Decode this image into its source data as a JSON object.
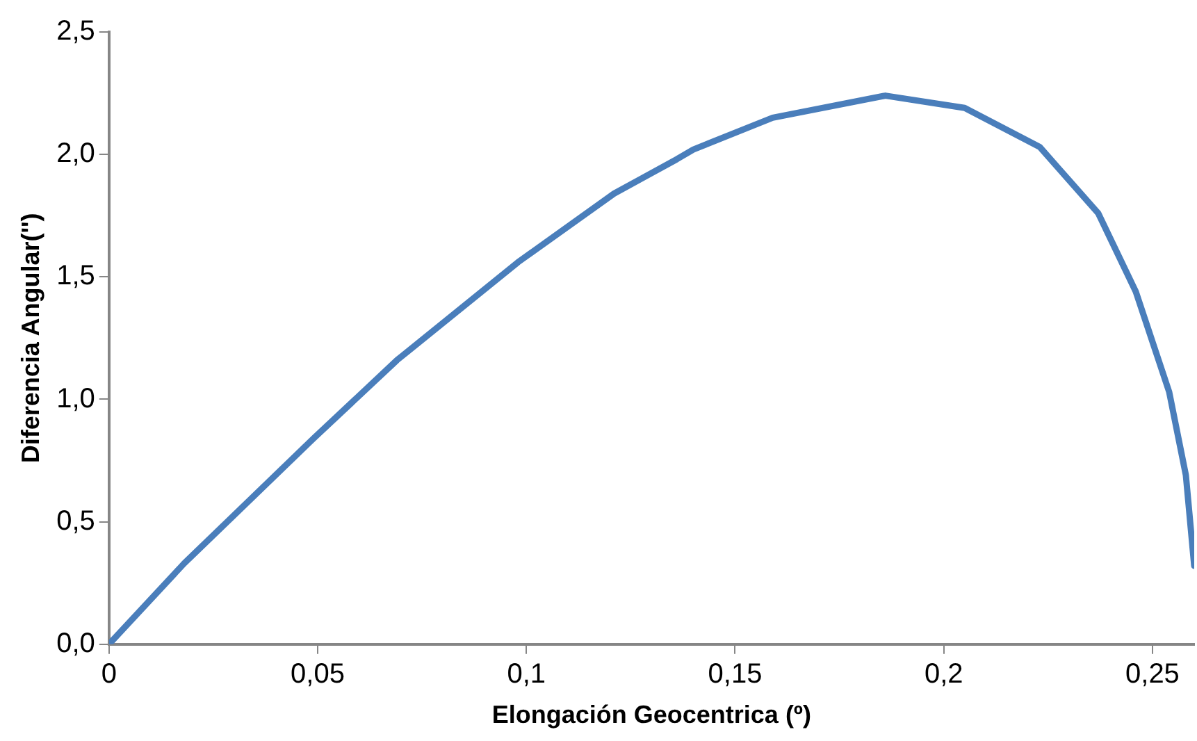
{
  "chart_data": {
    "type": "line",
    "xlabel": "Elongación Geocentrica (º)",
    "ylabel": "Diferencia Angular('')",
    "marker": "none",
    "line_style": "solid",
    "xlim": [
      0,
      0.26
    ],
    "ylim": [
      0,
      2.5
    ],
    "xticks": [
      0,
      {
        "value": 0.05,
        "label": "0,05"
      },
      {
        "value": 0.1,
        "label": "0,1"
      },
      {
        "value": 0.15,
        "label": "0,15"
      },
      {
        "value": 0.2,
        "label": "0,2"
      },
      {
        "value": 0.25,
        "label": "0,25"
      }
    ],
    "yticks": [
      {
        "value": 0,
        "label": "0,0"
      },
      {
        "value": 0.5,
        "label": "0,5"
      },
      {
        "value": 1,
        "label": "1,0"
      },
      {
        "value": 1.5,
        "label": "1,5"
      },
      {
        "value": 2,
        "label": "2,0"
      },
      {
        "value": 2.5,
        "label": "2,5"
      }
    ],
    "series": [
      {
        "color": "#4a7ebb",
        "x": [
          0,
          0.018,
          0.049,
          0.069,
          0.098,
          0.121,
          0.136,
          0.14,
          0.159,
          0.186,
          0.205,
          0.223,
          0.237,
          0.246,
          0.254,
          0.258,
          0.26
        ],
        "values": [
          0,
          0.33,
          0.84,
          1.16,
          1.56,
          1.84,
          1.98,
          2.02,
          2.15,
          2.24,
          2.19,
          2.03,
          1.76,
          1.44,
          1.03,
          0.69,
          0.32
        ]
      }
    ]
  }
}
